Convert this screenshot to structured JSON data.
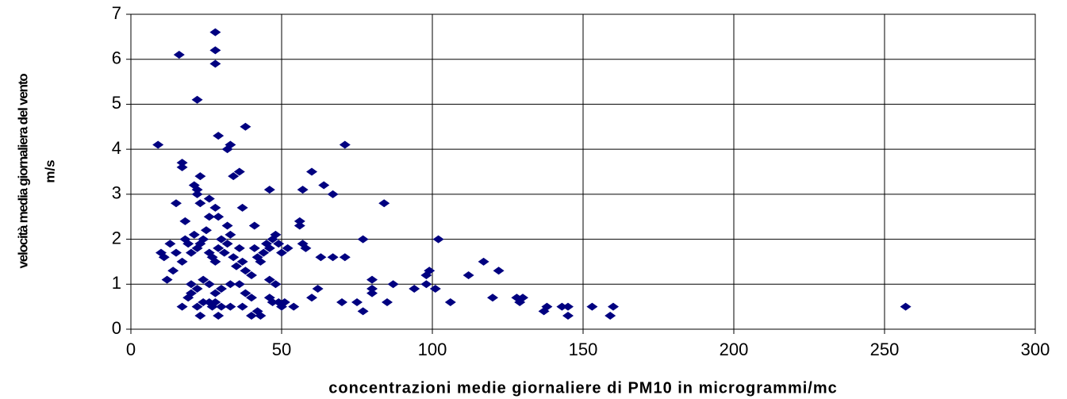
{
  "chart_data": {
    "type": "scatter",
    "x_label": "concentrazioni medie giornaliere di PM10 in microgrammi/mc",
    "y_label": [
      "velocità media giornaliera del vento",
      "m/s"
    ],
    "color": "#000080",
    "xlim": [
      0,
      300
    ],
    "xticks": [
      0,
      50,
      100,
      150,
      200,
      250,
      300
    ],
    "ylim": [
      0,
      7
    ],
    "yticks": [
      0,
      1,
      2,
      3,
      4,
      5,
      6,
      7
    ],
    "grid": true,
    "x": [
      9,
      16,
      22,
      28,
      28,
      28,
      29,
      33,
      32,
      38,
      71,
      17,
      17,
      23,
      21,
      22,
      22,
      26,
      34,
      36,
      46,
      60,
      57,
      64,
      67,
      15,
      23,
      28,
      37,
      84,
      26,
      29,
      41,
      32,
      18,
      56,
      56,
      10,
      11,
      13,
      12,
      14,
      15,
      17,
      18,
      19,
      20,
      21,
      22,
      23,
      24,
      25,
      26,
      27,
      28,
      29,
      30,
      31,
      32,
      33,
      34,
      35,
      36,
      37,
      38,
      40,
      41,
      42,
      43,
      44,
      45,
      46,
      47,
      48,
      49,
      50,
      52,
      57,
      58,
      63,
      67,
      71,
      77,
      102,
      20,
      22,
      24,
      26,
      28,
      30,
      33,
      36,
      38,
      40,
      46,
      48,
      62,
      80,
      80,
      87,
      98,
      99,
      98,
      101,
      112,
      117,
      122,
      17,
      19,
      20,
      22,
      23,
      24,
      26,
      27,
      28,
      29,
      30,
      33,
      37,
      40,
      42,
      43,
      46,
      47,
      49,
      50,
      51,
      54,
      60,
      70,
      75,
      77,
      80,
      85,
      94,
      106,
      120,
      128,
      129,
      130,
      137,
      138,
      143,
      145,
      145,
      153,
      159,
      160,
      257
    ],
    "values": [
      4.1,
      6.1,
      5.1,
      6.6,
      6.2,
      5.9,
      4.3,
      4.1,
      4.0,
      4.5,
      4.1,
      3.7,
      3.6,
      3.4,
      3.2,
      3.1,
      3.0,
      2.9,
      3.4,
      3.5,
      3.1,
      3.5,
      3.1,
      3.2,
      3.0,
      2.8,
      2.8,
      2.7,
      2.7,
      2.8,
      2.5,
      2.5,
      2.3,
      2.3,
      2.4,
      2.4,
      2.3,
      1.7,
      1.6,
      1.9,
      1.1,
      1.3,
      1.7,
      1.5,
      2.0,
      1.9,
      1.7,
      2.1,
      1.8,
      1.9,
      2.0,
      2.2,
      1.7,
      1.6,
      1.5,
      1.8,
      2.0,
      1.7,
      1.9,
      2.1,
      1.6,
      1.4,
      1.8,
      1.5,
      1.3,
      1.2,
      1.8,
      1.6,
      1.5,
      1.7,
      1.9,
      1.8,
      2.0,
      2.1,
      1.9,
      1.7,
      1.8,
      1.9,
      1.8,
      1.6,
      1.6,
      1.6,
      2.0,
      2.0,
      1.0,
      0.9,
      1.1,
      1.0,
      0.8,
      0.9,
      1.0,
      1.0,
      0.8,
      0.7,
      1.1,
      1.0,
      0.9,
      1.1,
      0.9,
      1.0,
      1.2,
      1.3,
      1.0,
      0.9,
      1.2,
      1.5,
      1.3,
      0.5,
      0.7,
      0.8,
      0.5,
      0.3,
      0.6,
      0.6,
      0.5,
      0.6,
      0.3,
      0.5,
      0.5,
      0.5,
      0.3,
      0.4,
      0.3,
      0.7,
      0.6,
      0.6,
      0.5,
      0.6,
      0.5,
      0.7,
      0.6,
      0.6,
      0.4,
      0.8,
      0.6,
      0.9,
      0.6,
      0.7,
      0.7,
      0.6,
      0.7,
      0.4,
      0.5,
      0.5,
      0.3,
      0.5,
      0.5,
      0.3,
      0.5,
      0.5
    ]
  }
}
